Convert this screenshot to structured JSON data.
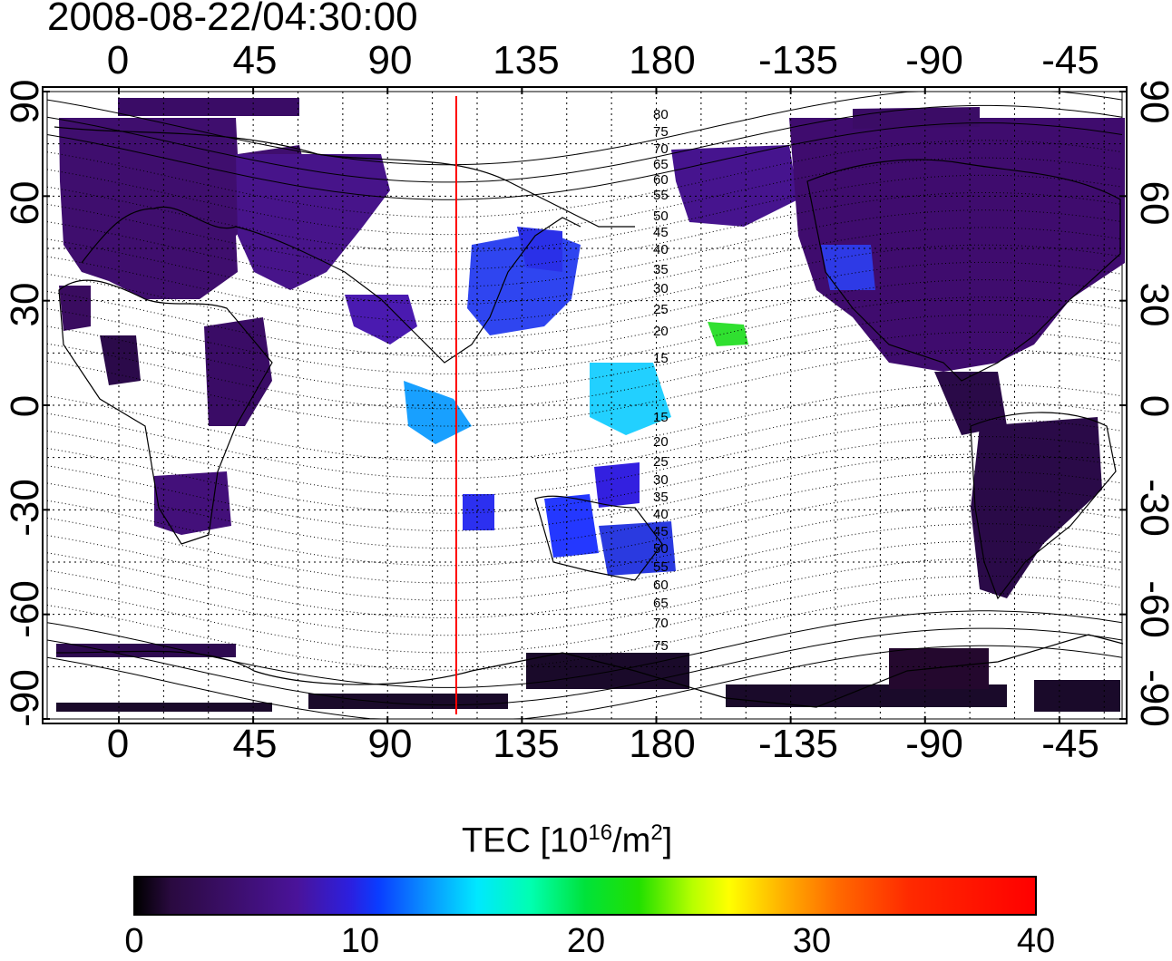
{
  "timestamp": "2008-08-22/04:30:00",
  "lon_ticks": [
    "0",
    "45",
    "90",
    "135",
    "180",
    "-135",
    "-90",
    "-45"
  ],
  "lat_ticks_left": [
    "90",
    "60",
    "30",
    "0",
    "-30",
    "-60",
    "-90"
  ],
  "lat_ticks_right": [
    "90",
    "60",
    "30",
    "0",
    "-30",
    "-60",
    "-90"
  ],
  "contour_labels": [
    "80",
    "75",
    "70",
    "65",
    "60",
    "55",
    "50",
    "45",
    "40",
    "35",
    "30",
    "25",
    "20",
    "15",
    "15",
    "20",
    "25",
    "30",
    "35",
    "40",
    "45",
    "50",
    "55",
    "60",
    "65",
    "70",
    "75"
  ],
  "colorbar": {
    "title_prefix": "TEC  [10",
    "title_exp": "16",
    "title_mid": "/m",
    "title_exp2": "2",
    "title_suffix": "]",
    "ticks": [
      "0",
      "10",
      "20",
      "30",
      "40"
    ],
    "min": 0,
    "max": 40
  },
  "map": {
    "meridian_line_lon": 113,
    "meridian_color": "#ff0000",
    "lon_range": [
      -24,
      336
    ],
    "lat_range": [
      -90,
      90
    ]
  },
  "colors": {
    "low": "#3d0a6a",
    "mid": "#1e3cff",
    "high": "#ff0000"
  }
}
